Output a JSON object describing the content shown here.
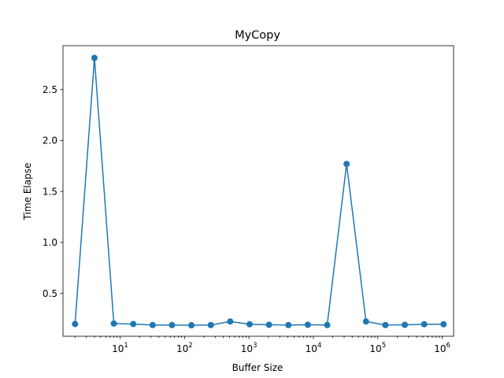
{
  "chart_data": {
    "type": "line",
    "title": "MyCopy",
    "xlabel": "Buffer Size",
    "ylabel": "Time Elapse",
    "xscale": "log",
    "xlim": [
      1.3,
      1500000
    ],
    "ylim": [
      0.08,
      2.93
    ],
    "grid": false,
    "legend": "none",
    "color": "#1f77b4",
    "marker": "circle",
    "x": [
      2,
      4,
      8,
      16,
      32,
      64,
      128,
      256,
      512,
      1024,
      2048,
      4096,
      8192,
      16384,
      32768,
      65536,
      131072,
      262144,
      524288,
      1048576
    ],
    "series": [
      {
        "values": [
          0.2,
          2.81,
          0.205,
          0.2,
          0.19,
          0.19,
          0.188,
          0.19,
          0.225,
          0.198,
          0.193,
          0.19,
          0.193,
          0.19,
          1.77,
          0.225,
          0.19,
          0.192,
          0.198,
          0.198
        ]
      }
    ],
    "y_ticks": [
      "0.5",
      "1.0",
      "1.5",
      "2.0",
      "2.5"
    ],
    "x_ticks": [
      {
        "base": "10",
        "exp": "1"
      },
      {
        "base": "10",
        "exp": "2"
      },
      {
        "base": "10",
        "exp": "3"
      },
      {
        "base": "10",
        "exp": "4"
      },
      {
        "base": "10",
        "exp": "5"
      },
      {
        "base": "10",
        "exp": "6"
      }
    ]
  }
}
